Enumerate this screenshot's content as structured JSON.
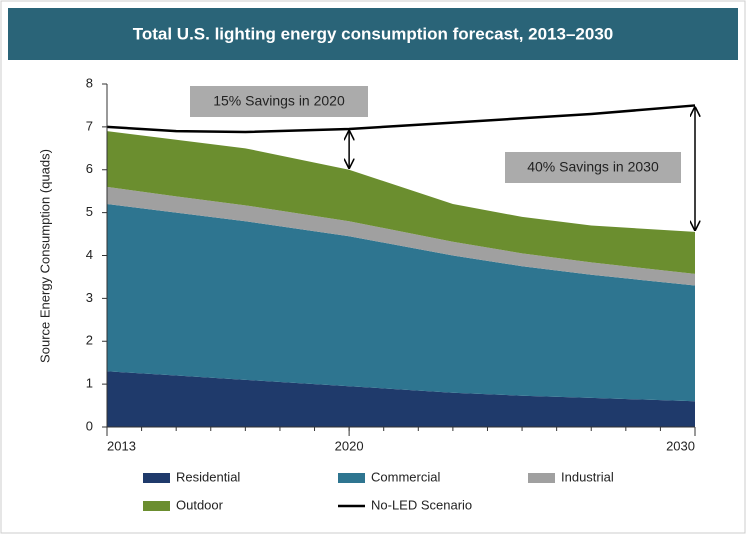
{
  "chart_data": {
    "type": "stacked-area",
    "title": "Total U.S. lighting energy consumption forecast, 2013–2030",
    "y_label": "Source Energy Consumption (quads)",
    "x": [
      2013,
      2015,
      2017,
      2020,
      2023,
      2025,
      2027,
      2030
    ],
    "xlim": [
      2013,
      2030
    ],
    "xticks": [
      2013,
      2020,
      2030
    ],
    "ylim": [
      0,
      8
    ],
    "yticks": [
      0,
      1,
      2,
      3,
      4,
      5,
      6,
      7,
      8
    ],
    "grid": false,
    "series": [
      {
        "name": "Residential",
        "color": "#1f3a6b",
        "values": [
          1.3,
          1.2,
          1.1,
          0.95,
          0.8,
          0.73,
          0.68,
          0.6
        ]
      },
      {
        "name": "Commercial",
        "color": "#2e7590",
        "values": [
          3.9,
          3.8,
          3.7,
          3.5,
          3.2,
          3.02,
          2.87,
          2.7
        ]
      },
      {
        "name": "Industrial",
        "color": "#a0a0a0",
        "values": [
          0.4,
          0.38,
          0.37,
          0.35,
          0.32,
          0.3,
          0.29,
          0.27
        ]
      },
      {
        "name": "Outdoor",
        "color": "#6b8e2f",
        "values": [
          1.3,
          1.32,
          1.33,
          1.2,
          0.88,
          0.85,
          0.86,
          0.98
        ]
      }
    ],
    "line_series": {
      "name": "No-LED Scenario",
      "color": "#000000",
      "values": [
        7.0,
        6.9,
        6.88,
        6.95,
        7.1,
        7.2,
        7.3,
        7.5
      ]
    },
    "annotations": [
      "15% Savings in 2020",
      "40% Savings in 2030"
    ]
  }
}
